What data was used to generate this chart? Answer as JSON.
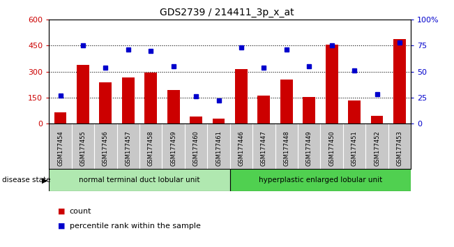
{
  "title": "GDS2739 / 214411_3p_x_at",
  "samples": [
    "GSM177454",
    "GSM177455",
    "GSM177456",
    "GSM177457",
    "GSM177458",
    "GSM177459",
    "GSM177460",
    "GSM177461",
    "GSM177446",
    "GSM177447",
    "GSM177448",
    "GSM177449",
    "GSM177450",
    "GSM177451",
    "GSM177452",
    "GSM177453"
  ],
  "counts": [
    65,
    340,
    240,
    265,
    295,
    195,
    40,
    30,
    315,
    160,
    255,
    155,
    455,
    135,
    45,
    490
  ],
  "percentiles": [
    27,
    75,
    54,
    71,
    70,
    55,
    26,
    22,
    73,
    54,
    71,
    55,
    75,
    51,
    28,
    78
  ],
  "group1_label": "normal terminal duct lobular unit",
  "group2_label": "hyperplastic enlarged lobular unit",
  "group1_count": 8,
  "group2_count": 8,
  "bar_color": "#cc0000",
  "dot_color": "#0000cc",
  "ylim_left": [
    0,
    600
  ],
  "ylim_right": [
    0,
    100
  ],
  "yticks_left": [
    0,
    150,
    300,
    450,
    600
  ],
  "yticks_right": [
    0,
    25,
    50,
    75,
    100
  ],
  "ytick_labels_left": [
    "0",
    "150",
    "300",
    "450",
    "600"
  ],
  "ytick_labels_right": [
    "0",
    "25",
    "50",
    "75",
    "100%"
  ],
  "grid_lines": [
    150,
    300,
    450
  ],
  "group1_color": "#b0e8b0",
  "group2_color": "#50d050",
  "bar_width": 0.55,
  "disease_state_label": "disease state",
  "legend_count_label": "count",
  "legend_pct_label": "percentile rank within the sample",
  "tick_bg_color": "#c8c8c8",
  "bg_color": "#ffffff"
}
